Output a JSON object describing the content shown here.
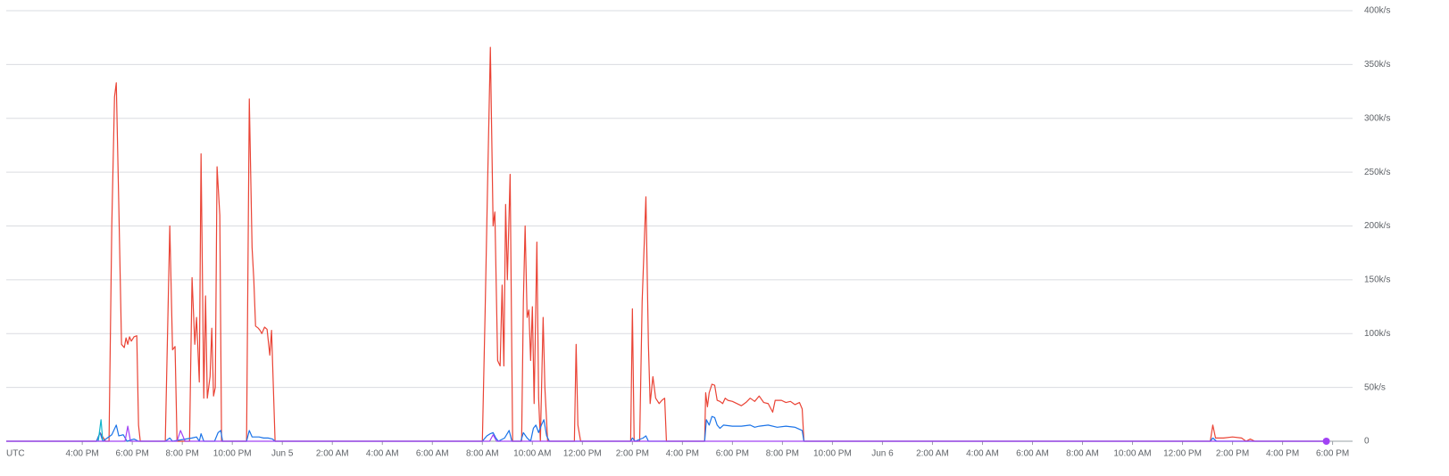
{
  "chart_data": {
    "type": "line",
    "timezone_label": "UTC",
    "xlim": [
      12.96,
      66.8
    ],
    "xticks": [
      {
        "value": 16,
        "label": "4:00 PM"
      },
      {
        "value": 18,
        "label": "6:00 PM"
      },
      {
        "value": 20,
        "label": "8:00 PM"
      },
      {
        "value": 22,
        "label": "10:00 PM"
      },
      {
        "value": 24,
        "label": "Jun 5"
      },
      {
        "value": 26,
        "label": "2:00 AM"
      },
      {
        "value": 28,
        "label": "4:00 AM"
      },
      {
        "value": 30,
        "label": "6:00 AM"
      },
      {
        "value": 32,
        "label": "8:00 AM"
      },
      {
        "value": 34,
        "label": "10:00 AM"
      },
      {
        "value": 36,
        "label": "12:00 PM"
      },
      {
        "value": 38,
        "label": "2:00 PM"
      },
      {
        "value": 40,
        "label": "4:00 PM"
      },
      {
        "value": 42,
        "label": "6:00 PM"
      },
      {
        "value": 44,
        "label": "8:00 PM"
      },
      {
        "value": 46,
        "label": "10:00 PM"
      },
      {
        "value": 48,
        "label": "Jun 6"
      },
      {
        "value": 50,
        "label": "2:00 AM"
      },
      {
        "value": 52,
        "label": "4:00 AM"
      },
      {
        "value": 54,
        "label": "6:00 AM"
      },
      {
        "value": 56,
        "label": "8:00 AM"
      },
      {
        "value": 58,
        "label": "10:00 AM"
      },
      {
        "value": 60,
        "label": "12:00 PM"
      },
      {
        "value": 62,
        "label": "2:00 PM"
      },
      {
        "value": 64,
        "label": "4:00 PM"
      },
      {
        "value": 66,
        "label": "6:00 PM"
      }
    ],
    "ylim": [
      0,
      400000
    ],
    "yticks": [
      0,
      {
        "value": 50000,
        "label": "50k/s"
      },
      {
        "value": 100000,
        "label": "100k/s"
      },
      {
        "value": 150000,
        "label": "150k/s"
      },
      {
        "value": 200000,
        "label": "200k/s"
      },
      {
        "value": 250000,
        "label": "250k/s"
      },
      {
        "value": 300000,
        "label": "300k/s"
      },
      {
        "value": 350000,
        "label": "350k/s"
      },
      {
        "value": 400000,
        "label": "400k/s"
      }
    ],
    "grid": true,
    "series": [
      {
        "color": "#ea4335",
        "x": [
          12.96,
          16.57,
          16.71,
          16.93,
          17.07,
          17.18,
          17.29,
          17.36,
          17.46,
          17.57,
          17.68,
          17.75,
          17.82,
          17.89,
          17.96,
          18.07,
          18.18,
          18.25,
          18.32,
          19.32,
          19.5,
          19.61,
          19.71,
          19.79,
          20.29,
          20.39,
          20.5,
          20.57,
          20.68,
          20.75,
          20.86,
          20.93,
          21.0,
          21.11,
          21.18,
          21.25,
          21.32,
          21.39,
          21.5,
          21.57,
          22.57,
          22.68,
          22.79,
          22.86,
          22.93,
          23.04,
          23.11,
          23.18,
          23.29,
          23.39,
          23.5,
          23.57,
          23.71,
          32.0,
          32.11,
          32.21,
          32.32,
          32.43,
          32.5,
          32.61,
          32.71,
          32.79,
          32.86,
          32.93,
          33.0,
          33.11,
          33.21,
          33.57,
          33.64,
          33.71,
          33.79,
          33.86,
          33.93,
          34.0,
          34.07,
          34.18,
          34.25,
          34.32,
          34.43,
          34.5,
          34.61,
          35.68,
          35.75,
          35.82,
          35.93,
          37.93,
          38.0,
          38.07,
          38.29,
          38.39,
          38.54,
          38.64,
          38.71,
          38.82,
          38.93,
          39.07,
          39.18,
          39.29,
          39.36,
          40.89,
          40.93,
          41.0,
          41.07,
          41.18,
          41.29,
          41.39,
          41.5,
          41.61,
          41.71,
          41.82,
          42.0,
          42.36,
          42.54,
          42.71,
          42.89,
          43.07,
          43.25,
          43.43,
          43.61,
          43.71,
          43.96,
          44.14,
          44.32,
          44.5,
          44.68,
          44.79,
          44.86,
          61.11,
          61.21,
          61.32,
          61.64,
          62.0,
          62.36,
          62.54,
          62.71,
          62.89,
          65.75
        ],
        "values": [
          0,
          0,
          8000,
          0,
          0,
          200000,
          320000,
          333000,
          220000,
          90000,
          87000,
          96000,
          90000,
          97000,
          93000,
          97000,
          98000,
          15000,
          0,
          0,
          200000,
          85000,
          88000,
          0,
          0,
          152000,
          90000,
          115000,
          55000,
          267000,
          40000,
          135000,
          40000,
          60000,
          105000,
          42000,
          50000,
          255000,
          210000,
          0,
          0,
          318000,
          180000,
          150000,
          107000,
          105000,
          103000,
          100000,
          106000,
          104000,
          80000,
          103000,
          0,
          0,
          120000,
          240000,
          366000,
          200000,
          213000,
          75000,
          70000,
          145000,
          70000,
          220000,
          150000,
          248000,
          0,
          0,
          130000,
          200000,
          115000,
          122000,
          75000,
          125000,
          35000,
          185000,
          40000,
          0,
          115000,
          50000,
          0,
          0,
          90000,
          15000,
          0,
          0,
          123000,
          0,
          0,
          130000,
          227000,
          90000,
          35000,
          60000,
          40000,
          35000,
          38000,
          40000,
          0,
          0,
          45000,
          32000,
          45000,
          53000,
          52000,
          38000,
          37000,
          35000,
          40000,
          38000,
          37000,
          33000,
          36000,
          40000,
          37000,
          42000,
          36000,
          35000,
          27000,
          38000,
          38000,
          36000,
          37000,
          34000,
          36000,
          30000,
          0,
          0,
          15000,
          3000,
          3000,
          4000,
          3000,
          0,
          2000,
          0,
          0
        ]
      },
      {
        "color": "#1a73e8",
        "x": [
          12.96,
          16.57,
          16.71,
          16.82,
          17.0,
          17.18,
          17.36,
          17.46,
          17.64,
          17.79,
          18.07,
          18.25,
          19.32,
          19.5,
          19.61,
          20.39,
          20.57,
          20.68,
          20.75,
          20.86,
          21.29,
          21.43,
          21.54,
          21.61,
          22.57,
          22.68,
          22.79,
          23.07,
          23.25,
          23.43,
          23.61,
          23.71,
          32.0,
          32.18,
          32.32,
          32.43,
          32.54,
          32.64,
          32.89,
          33.07,
          33.18,
          33.54,
          33.64,
          33.79,
          33.93,
          34.04,
          34.14,
          34.25,
          34.36,
          34.46,
          34.57,
          34.68,
          37.93,
          38.0,
          38.11,
          38.43,
          38.54,
          38.64,
          40.89,
          40.96,
          41.07,
          41.18,
          41.29,
          41.39,
          41.5,
          41.64,
          42.0,
          42.36,
          42.71,
          42.89,
          43.07,
          43.43,
          43.79,
          44.14,
          44.5,
          44.79,
          44.86,
          61.11,
          61.21,
          61.36,
          65.75
        ],
        "values": [
          0,
          0,
          8000,
          0,
          3000,
          6000,
          15000,
          5000,
          6000,
          0,
          2000,
          0,
          0,
          3000,
          0,
          3000,
          4000,
          0,
          7000,
          0,
          0,
          8000,
          10000,
          0,
          0,
          10000,
          4000,
          4000,
          3000,
          3000,
          2000,
          0,
          0,
          5000,
          7000,
          8000,
          3000,
          0,
          3000,
          10000,
          0,
          0,
          8000,
          3000,
          0,
          12000,
          15000,
          8000,
          15000,
          20000,
          5000,
          0,
          0,
          3000,
          0,
          3000,
          5000,
          0,
          0,
          20000,
          15000,
          23000,
          22000,
          15000,
          12000,
          15000,
          14000,
          14000,
          15000,
          13000,
          14000,
          15000,
          13000,
          14000,
          13000,
          10000,
          0,
          0,
          3000,
          0,
          0
        ]
      },
      {
        "color": "#12b5cb",
        "x": [
          16.64,
          16.75,
          16.82
        ],
        "values": [
          0,
          20000,
          0
        ]
      },
      {
        "color": "#a142f4",
        "x": [
          12.96,
          17.71,
          17.82,
          17.93,
          19.79,
          19.93,
          20.11,
          32.29,
          32.43,
          32.57,
          65.75
        ],
        "values": [
          0,
          0,
          14000,
          0,
          0,
          10000,
          0,
          0,
          6000,
          0,
          0
        ]
      }
    ]
  }
}
